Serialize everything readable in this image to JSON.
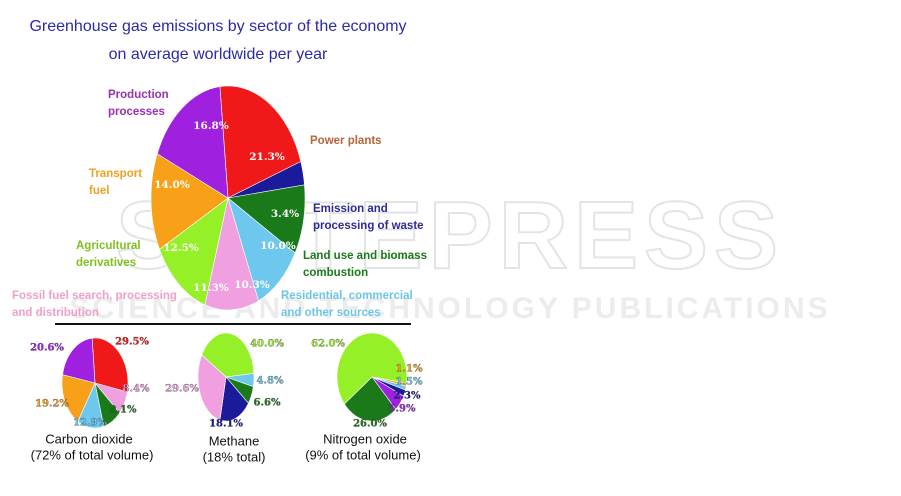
{
  "watermark": [
    "SCITEPRESS",
    "SCIENCE AND TECHNOLOGY PUBLICATIONS"
  ],
  "chart_data": [
    {
      "type": "pie",
      "title": "Greenhouse gas emissions by sector of the economy",
      "subtitle": "on average worldwide per year",
      "categories": [
        "Power plants",
        "Emission and processing of waste",
        "Land use and biomass combustion",
        "Residential, commercial and other sources",
        "Fossil fuel search, processing and distribution",
        "Agricultural derivatives",
        "Transport fuel",
        "Production processes"
      ],
      "values": [
        21.3,
        3.4,
        10.0,
        10.3,
        11.3,
        12.5,
        14.0,
        16.8
      ],
      "value_labels": [
        "21.3%",
        "3.4%",
        "10.0%",
        "10.3%",
        "11.3%",
        "12.5%",
        "14.0%",
        "16.8%"
      ],
      "colors": [
        "#f01818",
        "#1a1a9a",
        "#1a7a1a",
        "#6ec8ee",
        "#f0a0e0",
        "#96f028",
        "#f8a018",
        "#a020e0"
      ],
      "label_colors": [
        "#b8643c",
        "#2b2b9b",
        "#1a7a1a",
        "#6cc5e8",
        "#f0a0c8",
        "#7fbf1f",
        "#f0a020",
        "#9b30b0"
      ]
    },
    {
      "type": "pie",
      "title": "Carbon dioxide",
      "subtitle": "(72% of total volume)",
      "values": [
        29.5,
        8.4,
        9.1,
        12.9,
        19.2,
        20.6
      ],
      "value_labels": [
        "29.5%",
        "8.4%",
        "9.1%",
        "12.9%",
        "19.2%",
        "20.6%"
      ],
      "colors": [
        "#f01818",
        "#f0a0e0",
        "#1a7a1a",
        "#6ec8ee",
        "#f8a018",
        "#a020e0"
      ]
    },
    {
      "type": "pie",
      "title": "Methane",
      "subtitle": "(18% total)",
      "values": [
        40.0,
        4.8,
        6.6,
        18.1,
        29.6
      ],
      "value_labels": [
        "40.0%",
        "4.8%",
        "6.6%",
        "18.1%",
        "29.6%"
      ],
      "colors": [
        "#96f028",
        "#6ec8ee",
        "#1a7a1a",
        "#1a1a9a",
        "#f0a0e0"
      ]
    },
    {
      "type": "pie",
      "title": "Nitrogen oxide",
      "subtitle": "(9% of total volume)",
      "values": [
        62.0,
        1.1,
        1.5,
        2.3,
        5.9,
        26.0
      ],
      "value_labels": [
        "62.0%",
        "1.1%",
        "1.5%",
        "2.3%",
        "5.9%",
        "26.0%"
      ],
      "colors": [
        "#96f028",
        "#f8a018",
        "#6ec8ee",
        "#1a1a9a",
        "#a020e0",
        "#1a7a1a"
      ]
    }
  ]
}
